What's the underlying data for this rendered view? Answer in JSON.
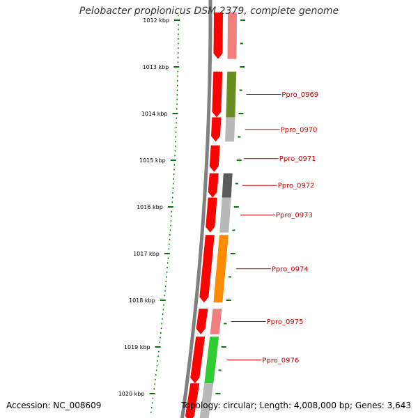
{
  "title": "Pelobacter propionicus DSM 2379, complete genome",
  "footer": {
    "accession": "Accession: NC_008609",
    "summary": "Topology: circular; Length: 4,008,000 bp; Genes: 3,643"
  },
  "ruler": {
    "labels": [
      "1012 kbp",
      "1013 kbp",
      "1014 kbp",
      "1015 kbp",
      "1016 kbp",
      "1017 kbp",
      "1018 kbp",
      "1019 kbp",
      "1020 kbp"
    ]
  },
  "genes": [
    {
      "name": "",
      "start_kbp": 1011.8,
      "end_kbp": 1012.83,
      "cog_color": "#f08080"
    },
    {
      "name": "Ppro_0969",
      "start_kbp": 1013.1,
      "end_kbp": 1014.08,
      "cog_color": "#6b8e23"
    },
    {
      "name": "Ppro_0970",
      "start_kbp": 1014.08,
      "end_kbp": 1014.6,
      "cog_color": "#b8b8b8"
    },
    {
      "name": "Ppro_0971",
      "start_kbp": 1014.68,
      "end_kbp": 1015.25,
      "cog_color": ""
    },
    {
      "name": "Ppro_0972",
      "start_kbp": 1015.28,
      "end_kbp": 1015.8,
      "cog_color": "#5a5a5a"
    },
    {
      "name": "Ppro_0973",
      "start_kbp": 1015.8,
      "end_kbp": 1016.55,
      "cog_color": "#b8b8b8"
    },
    {
      "name": "Ppro_0974",
      "start_kbp": 1016.6,
      "end_kbp": 1018.05,
      "cog_color": "#ff8c00"
    },
    {
      "name": "Ppro_0975",
      "start_kbp": 1018.18,
      "end_kbp": 1018.73,
      "cog_color": "#f08080"
    },
    {
      "name": "Ppro_0976",
      "start_kbp": 1018.78,
      "end_kbp": 1019.78,
      "cog_color": "#32cd32"
    },
    {
      "name": "",
      "start_kbp": 1019.78,
      "end_kbp": 1020.6,
      "cog_color": "#b8b8b8"
    }
  ],
  "colors": {
    "cds": "#ff0000",
    "backbone": "#808080",
    "ruler": "#007700",
    "label": "#cc0000"
  }
}
